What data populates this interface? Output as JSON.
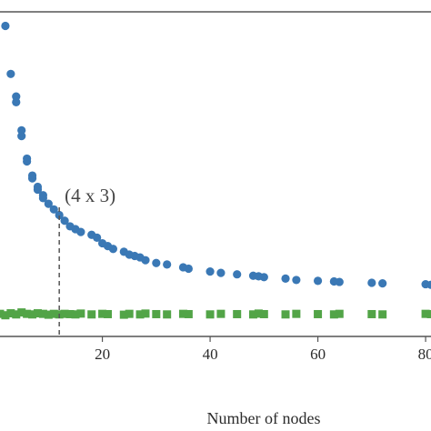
{
  "chart_data": {
    "type": "scatter",
    "title": "",
    "xlabel": "Number of nodes",
    "ylabel": "",
    "xlim": [
      1,
      81
    ],
    "ylim": [
      0,
      1.15
    ],
    "x_ticks": [
      20,
      40,
      60,
      80
    ],
    "x_tick_labels": [
      "20",
      "40",
      "60",
      "80"
    ],
    "grid": false,
    "legend": "none",
    "annotation": {
      "text": "(4 x 3)",
      "x": 12
    },
    "series": [
      {
        "marker": "circle",
        "color": "#3a78b5",
        "x": [
          2,
          3,
          4,
          4,
          5,
          5,
          6,
          6,
          7,
          7,
          8,
          8,
          9,
          9,
          10,
          11,
          12,
          13,
          14,
          15,
          16,
          18,
          19,
          20,
          21,
          22,
          24,
          25,
          26,
          27,
          28,
          30,
          32,
          35,
          36,
          40,
          42,
          45,
          48,
          49,
          50,
          54,
          56,
          60,
          63,
          64,
          70,
          72,
          80,
          81
        ],
        "y": [
          1.1,
          0.93,
          0.85,
          0.83,
          0.73,
          0.71,
          0.63,
          0.62,
          0.57,
          0.56,
          0.53,
          0.52,
          0.5,
          0.49,
          0.47,
          0.45,
          0.43,
          0.41,
          0.39,
          0.38,
          0.37,
          0.36,
          0.35,
          0.33,
          0.32,
          0.31,
          0.3,
          0.29,
          0.285,
          0.28,
          0.27,
          0.26,
          0.255,
          0.245,
          0.24,
          0.23,
          0.225,
          0.22,
          0.215,
          0.213,
          0.21,
          0.205,
          0.2,
          0.197,
          0.195,
          0.193,
          0.19,
          0.188,
          0.185,
          0.183
        ]
      },
      {
        "marker": "square",
        "color": "#52a447",
        "x": [
          1,
          2,
          3,
          4,
          5,
          6,
          7,
          8,
          9,
          10,
          11,
          12,
          13,
          14,
          15,
          16,
          18,
          20,
          21,
          24,
          25,
          27,
          28,
          30,
          32,
          35,
          36,
          40,
          42,
          45,
          48,
          49,
          50,
          54,
          56,
          60,
          63,
          64,
          70,
          72,
          80,
          81
        ],
        "y": [
          0.08,
          0.075,
          0.082,
          0.078,
          0.085,
          0.08,
          0.078,
          0.082,
          0.08,
          0.077,
          0.08,
          0.078,
          0.08,
          0.079,
          0.078,
          0.081,
          0.078,
          0.08,
          0.079,
          0.077,
          0.08,
          0.078,
          0.081,
          0.079,
          0.078,
          0.08,
          0.079,
          0.078,
          0.08,
          0.079,
          0.078,
          0.081,
          0.079,
          0.078,
          0.08,
          0.079,
          0.078,
          0.08,
          0.079,
          0.078,
          0.08,
          0.079
        ]
      }
    ]
  }
}
